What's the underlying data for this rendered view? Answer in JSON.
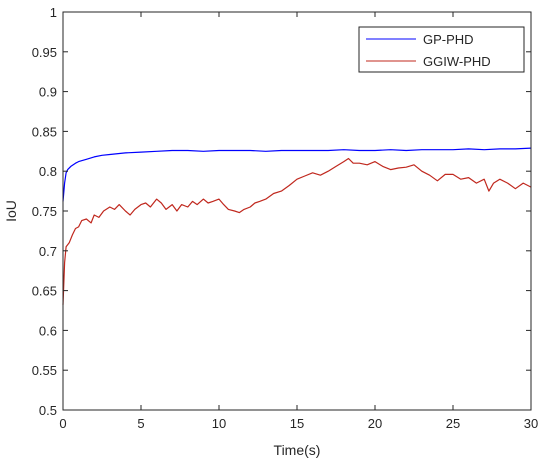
{
  "chart_data": {
    "type": "line",
    "title": "",
    "xlabel": "Time(s)",
    "ylabel": "IoU",
    "xlim": [
      0,
      30
    ],
    "ylim": [
      0.5,
      1
    ],
    "xticks": [
      0,
      5,
      10,
      15,
      20,
      25,
      30
    ],
    "xtick_labels": [
      "0",
      "5",
      "10",
      "15",
      "20",
      "25",
      "30"
    ],
    "yticks": [
      0.5,
      0.55,
      0.6,
      0.65,
      0.7,
      0.75,
      0.8,
      0.85,
      0.9,
      0.95,
      1
    ],
    "ytick_labels": [
      "0.5",
      "0.55",
      "0.6",
      "0.65",
      "0.7",
      "0.75",
      "0.8",
      "0.85",
      "0.9",
      "0.95",
      "1"
    ],
    "grid": false,
    "legend_position": "top-right",
    "series": [
      {
        "name": "GP-PHD",
        "color": "#0000ff",
        "x": [
          0,
          0.1,
          0.2,
          0.3,
          0.5,
          0.8,
          1,
          1.5,
          2,
          2.5,
          3,
          4,
          5,
          6,
          7,
          8,
          9,
          10,
          11,
          12,
          13,
          14,
          15,
          16,
          17,
          18,
          19,
          20,
          21,
          22,
          23,
          24,
          25,
          26,
          27,
          28,
          29,
          30
        ],
        "y": [
          0.762,
          0.785,
          0.798,
          0.802,
          0.806,
          0.81,
          0.812,
          0.815,
          0.818,
          0.82,
          0.821,
          0.823,
          0.824,
          0.825,
          0.826,
          0.826,
          0.825,
          0.826,
          0.826,
          0.826,
          0.825,
          0.826,
          0.826,
          0.826,
          0.826,
          0.827,
          0.826,
          0.826,
          0.827,
          0.826,
          0.827,
          0.827,
          0.827,
          0.828,
          0.827,
          0.828,
          0.828,
          0.829
        ]
      },
      {
        "name": "GGIW-PHD",
        "color": "#c0281e",
        "x": [
          0,
          0.1,
          0.2,
          0.4,
          0.6,
          0.8,
          1,
          1.2,
          1.5,
          1.8,
          2,
          2.3,
          2.6,
          3,
          3.3,
          3.6,
          4,
          4.3,
          4.6,
          5,
          5.3,
          5.6,
          6,
          6.3,
          6.6,
          7,
          7.3,
          7.6,
          8,
          8.3,
          8.6,
          9,
          9.3,
          9.6,
          10,
          10.3,
          10.6,
          11,
          11.3,
          11.6,
          12,
          12.3,
          12.6,
          13,
          13.5,
          14,
          14.5,
          15,
          15.5,
          16,
          16.5,
          17,
          17.5,
          18,
          18.3,
          18.6,
          19,
          19.5,
          20,
          20.5,
          21,
          21.5,
          22,
          22.5,
          23,
          23.5,
          24,
          24.5,
          25,
          25.5,
          26,
          26.5,
          27,
          27.3,
          27.6,
          28,
          28.5,
          29,
          29.5,
          30
        ],
        "y": [
          0.632,
          0.685,
          0.705,
          0.71,
          0.72,
          0.728,
          0.73,
          0.738,
          0.74,
          0.735,
          0.745,
          0.742,
          0.75,
          0.755,
          0.752,
          0.758,
          0.75,
          0.745,
          0.752,
          0.758,
          0.76,
          0.755,
          0.765,
          0.76,
          0.752,
          0.758,
          0.75,
          0.758,
          0.755,
          0.762,
          0.758,
          0.765,
          0.76,
          0.762,
          0.765,
          0.758,
          0.752,
          0.75,
          0.748,
          0.752,
          0.755,
          0.76,
          0.762,
          0.765,
          0.772,
          0.775,
          0.782,
          0.79,
          0.794,
          0.798,
          0.795,
          0.8,
          0.806,
          0.812,
          0.816,
          0.81,
          0.81,
          0.808,
          0.812,
          0.806,
          0.802,
          0.804,
          0.805,
          0.808,
          0.8,
          0.795,
          0.788,
          0.796,
          0.796,
          0.79,
          0.792,
          0.785,
          0.79,
          0.775,
          0.785,
          0.79,
          0.785,
          0.778,
          0.785,
          0.78
        ]
      }
    ]
  }
}
